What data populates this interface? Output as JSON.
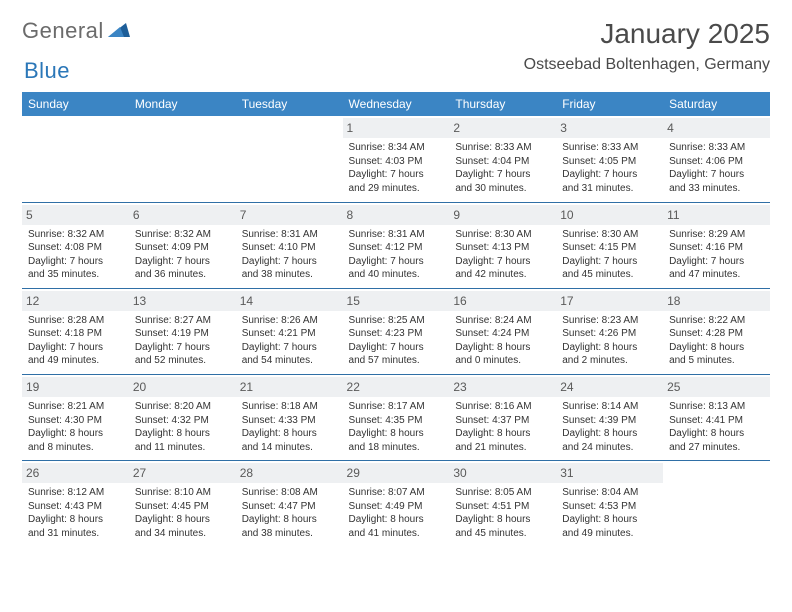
{
  "logo": {
    "text1": "General",
    "text2": "Blue"
  },
  "header": {
    "month_title": "January 2025",
    "location": "Ostseebad Boltenhagen, Germany"
  },
  "styling": {
    "header_bg": "#3b85c4",
    "header_fg": "#ffffff",
    "row_border": "#2f6fa6",
    "daynum_bg": "#eef0f2",
    "daynum_fg": "#5a5a5a",
    "body_font_size": 10,
    "title_font_size": 28,
    "location_font_size": 16
  },
  "calendar": {
    "day_headers": [
      "Sunday",
      "Monday",
      "Tuesday",
      "Wednesday",
      "Thursday",
      "Friday",
      "Saturday"
    ],
    "weeks": [
      [
        {
          "empty": true
        },
        {
          "empty": true
        },
        {
          "empty": true
        },
        {
          "num": "1",
          "sunrise": "Sunrise: 8:34 AM",
          "sunset": "Sunset: 4:03 PM",
          "day1": "Daylight: 7 hours",
          "day2": "and 29 minutes."
        },
        {
          "num": "2",
          "sunrise": "Sunrise: 8:33 AM",
          "sunset": "Sunset: 4:04 PM",
          "day1": "Daylight: 7 hours",
          "day2": "and 30 minutes."
        },
        {
          "num": "3",
          "sunrise": "Sunrise: 8:33 AM",
          "sunset": "Sunset: 4:05 PM",
          "day1": "Daylight: 7 hours",
          "day2": "and 31 minutes."
        },
        {
          "num": "4",
          "sunrise": "Sunrise: 8:33 AM",
          "sunset": "Sunset: 4:06 PM",
          "day1": "Daylight: 7 hours",
          "day2": "and 33 minutes."
        }
      ],
      [
        {
          "num": "5",
          "sunrise": "Sunrise: 8:32 AM",
          "sunset": "Sunset: 4:08 PM",
          "day1": "Daylight: 7 hours",
          "day2": "and 35 minutes."
        },
        {
          "num": "6",
          "sunrise": "Sunrise: 8:32 AM",
          "sunset": "Sunset: 4:09 PM",
          "day1": "Daylight: 7 hours",
          "day2": "and 36 minutes."
        },
        {
          "num": "7",
          "sunrise": "Sunrise: 8:31 AM",
          "sunset": "Sunset: 4:10 PM",
          "day1": "Daylight: 7 hours",
          "day2": "and 38 minutes."
        },
        {
          "num": "8",
          "sunrise": "Sunrise: 8:31 AM",
          "sunset": "Sunset: 4:12 PM",
          "day1": "Daylight: 7 hours",
          "day2": "and 40 minutes."
        },
        {
          "num": "9",
          "sunrise": "Sunrise: 8:30 AM",
          "sunset": "Sunset: 4:13 PM",
          "day1": "Daylight: 7 hours",
          "day2": "and 42 minutes."
        },
        {
          "num": "10",
          "sunrise": "Sunrise: 8:30 AM",
          "sunset": "Sunset: 4:15 PM",
          "day1": "Daylight: 7 hours",
          "day2": "and 45 minutes."
        },
        {
          "num": "11",
          "sunrise": "Sunrise: 8:29 AM",
          "sunset": "Sunset: 4:16 PM",
          "day1": "Daylight: 7 hours",
          "day2": "and 47 minutes."
        }
      ],
      [
        {
          "num": "12",
          "sunrise": "Sunrise: 8:28 AM",
          "sunset": "Sunset: 4:18 PM",
          "day1": "Daylight: 7 hours",
          "day2": "and 49 minutes."
        },
        {
          "num": "13",
          "sunrise": "Sunrise: 8:27 AM",
          "sunset": "Sunset: 4:19 PM",
          "day1": "Daylight: 7 hours",
          "day2": "and 52 minutes."
        },
        {
          "num": "14",
          "sunrise": "Sunrise: 8:26 AM",
          "sunset": "Sunset: 4:21 PM",
          "day1": "Daylight: 7 hours",
          "day2": "and 54 minutes."
        },
        {
          "num": "15",
          "sunrise": "Sunrise: 8:25 AM",
          "sunset": "Sunset: 4:23 PM",
          "day1": "Daylight: 7 hours",
          "day2": "and 57 minutes."
        },
        {
          "num": "16",
          "sunrise": "Sunrise: 8:24 AM",
          "sunset": "Sunset: 4:24 PM",
          "day1": "Daylight: 8 hours",
          "day2": "and 0 minutes."
        },
        {
          "num": "17",
          "sunrise": "Sunrise: 8:23 AM",
          "sunset": "Sunset: 4:26 PM",
          "day1": "Daylight: 8 hours",
          "day2": "and 2 minutes."
        },
        {
          "num": "18",
          "sunrise": "Sunrise: 8:22 AM",
          "sunset": "Sunset: 4:28 PM",
          "day1": "Daylight: 8 hours",
          "day2": "and 5 minutes."
        }
      ],
      [
        {
          "num": "19",
          "sunrise": "Sunrise: 8:21 AM",
          "sunset": "Sunset: 4:30 PM",
          "day1": "Daylight: 8 hours",
          "day2": "and 8 minutes."
        },
        {
          "num": "20",
          "sunrise": "Sunrise: 8:20 AM",
          "sunset": "Sunset: 4:32 PM",
          "day1": "Daylight: 8 hours",
          "day2": "and 11 minutes."
        },
        {
          "num": "21",
          "sunrise": "Sunrise: 8:18 AM",
          "sunset": "Sunset: 4:33 PM",
          "day1": "Daylight: 8 hours",
          "day2": "and 14 minutes."
        },
        {
          "num": "22",
          "sunrise": "Sunrise: 8:17 AM",
          "sunset": "Sunset: 4:35 PM",
          "day1": "Daylight: 8 hours",
          "day2": "and 18 minutes."
        },
        {
          "num": "23",
          "sunrise": "Sunrise: 8:16 AM",
          "sunset": "Sunset: 4:37 PM",
          "day1": "Daylight: 8 hours",
          "day2": "and 21 minutes."
        },
        {
          "num": "24",
          "sunrise": "Sunrise: 8:14 AM",
          "sunset": "Sunset: 4:39 PM",
          "day1": "Daylight: 8 hours",
          "day2": "and 24 minutes."
        },
        {
          "num": "25",
          "sunrise": "Sunrise: 8:13 AM",
          "sunset": "Sunset: 4:41 PM",
          "day1": "Daylight: 8 hours",
          "day2": "and 27 minutes."
        }
      ],
      [
        {
          "num": "26",
          "sunrise": "Sunrise: 8:12 AM",
          "sunset": "Sunset: 4:43 PM",
          "day1": "Daylight: 8 hours",
          "day2": "and 31 minutes."
        },
        {
          "num": "27",
          "sunrise": "Sunrise: 8:10 AM",
          "sunset": "Sunset: 4:45 PM",
          "day1": "Daylight: 8 hours",
          "day2": "and 34 minutes."
        },
        {
          "num": "28",
          "sunrise": "Sunrise: 8:08 AM",
          "sunset": "Sunset: 4:47 PM",
          "day1": "Daylight: 8 hours",
          "day2": "and 38 minutes."
        },
        {
          "num": "29",
          "sunrise": "Sunrise: 8:07 AM",
          "sunset": "Sunset: 4:49 PM",
          "day1": "Daylight: 8 hours",
          "day2": "and 41 minutes."
        },
        {
          "num": "30",
          "sunrise": "Sunrise: 8:05 AM",
          "sunset": "Sunset: 4:51 PM",
          "day1": "Daylight: 8 hours",
          "day2": "and 45 minutes."
        },
        {
          "num": "31",
          "sunrise": "Sunrise: 8:04 AM",
          "sunset": "Sunset: 4:53 PM",
          "day1": "Daylight: 8 hours",
          "day2": "and 49 minutes."
        },
        {
          "empty": true
        }
      ]
    ]
  }
}
